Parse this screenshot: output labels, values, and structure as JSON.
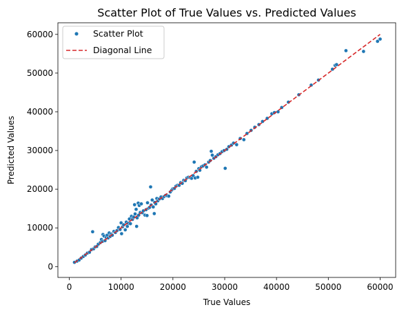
{
  "chart_data": {
    "type": "scatter",
    "title": "Scatter Plot of True Values vs. Predicted Values",
    "xlabel": "True Values",
    "ylabel": "Predicted Values",
    "xlim": [
      -2200,
      63000
    ],
    "ylim": [
      -2800,
      63000
    ],
    "xticks": [
      0,
      10000,
      20000,
      30000,
      40000,
      50000,
      60000
    ],
    "yticks": [
      0,
      10000,
      20000,
      30000,
      40000,
      50000,
      60000
    ],
    "xtick_labels": [
      "0",
      "10000",
      "20000",
      "30000",
      "40000",
      "50000",
      "60000"
    ],
    "ytick_labels": [
      "0",
      "10000",
      "20000",
      "30000",
      "40000",
      "50000",
      "60000"
    ],
    "grid": false,
    "legend_position": "top-left",
    "legend": {
      "scatter_label": "Scatter Plot",
      "line_label": "Diagonal Line"
    },
    "colors": {
      "scatter": "#1f77b4",
      "diagonal": "#d62728"
    },
    "diagonal": [
      [
        1000,
        1000
      ],
      [
        60000,
        60000
      ]
    ],
    "series": [
      {
        "name": "Scatter Plot",
        "points": [
          [
            1000,
            1100
          ],
          [
            1500,
            1400
          ],
          [
            1900,
            1700
          ],
          [
            2300,
            2200
          ],
          [
            2700,
            2600
          ],
          [
            3100,
            3000
          ],
          [
            3500,
            3500
          ],
          [
            3900,
            3700
          ],
          [
            4300,
            4400
          ],
          [
            4500,
            9000
          ],
          [
            4700,
            4600
          ],
          [
            5000,
            5100
          ],
          [
            5300,
            5200
          ],
          [
            5600,
            5800
          ],
          [
            6000,
            6200
          ],
          [
            6200,
            7000
          ],
          [
            6400,
            6500
          ],
          [
            6500,
            8300
          ],
          [
            6700,
            7900
          ],
          [
            6900,
            6700
          ],
          [
            7100,
            7600
          ],
          [
            7300,
            8100
          ],
          [
            7500,
            7400
          ],
          [
            7700,
            8700
          ],
          [
            7900,
            7800
          ],
          [
            8100,
            8400
          ],
          [
            8300,
            8100
          ],
          [
            8600,
            9100
          ],
          [
            8900,
            8800
          ],
          [
            9200,
            9300
          ],
          [
            9500,
            10100
          ],
          [
            9800,
            9600
          ],
          [
            10000,
            11300
          ],
          [
            10100,
            8500
          ],
          [
            10300,
            10300
          ],
          [
            10500,
            10800
          ],
          [
            10800,
            9500
          ],
          [
            11000,
            11500
          ],
          [
            11200,
            10400
          ],
          [
            11400,
            11200
          ],
          [
            11600,
            12300
          ],
          [
            11800,
            11100
          ],
          [
            12000,
            13000
          ],
          [
            12200,
            12200
          ],
          [
            12400,
            12800
          ],
          [
            12600,
            16000
          ],
          [
            12700,
            13600
          ],
          [
            12900,
            14800
          ],
          [
            13000,
            10400
          ],
          [
            13100,
            12600
          ],
          [
            13300,
            16400
          ],
          [
            13400,
            13300
          ],
          [
            13500,
            15800
          ],
          [
            13700,
            14000
          ],
          [
            13900,
            16200
          ],
          [
            14100,
            13900
          ],
          [
            14300,
            14400
          ],
          [
            14600,
            13300
          ],
          [
            14800,
            14700
          ],
          [
            15000,
            13200
          ],
          [
            15100,
            16500
          ],
          [
            15300,
            15100
          ],
          [
            15500,
            15300
          ],
          [
            15700,
            20600
          ],
          [
            15800,
            15900
          ],
          [
            16000,
            17200
          ],
          [
            16200,
            15400
          ],
          [
            16400,
            13700
          ],
          [
            16500,
            16600
          ],
          [
            16700,
            16200
          ],
          [
            16900,
            17600
          ],
          [
            17100,
            17000
          ],
          [
            17400,
            17500
          ],
          [
            17700,
            18000
          ],
          [
            18000,
            17600
          ],
          [
            18300,
            18100
          ],
          [
            18600,
            18400
          ],
          [
            18900,
            18300
          ],
          [
            19200,
            18200
          ],
          [
            19500,
            19300
          ],
          [
            19800,
            19800
          ],
          [
            20000,
            20100
          ],
          [
            20300,
            20200
          ],
          [
            20600,
            20800
          ],
          [
            20900,
            21000
          ],
          [
            21200,
            21000
          ],
          [
            21500,
            21700
          ],
          [
            21800,
            21500
          ],
          [
            22100,
            22300
          ],
          [
            22400,
            22200
          ],
          [
            22700,
            22900
          ],
          [
            23000,
            23100
          ],
          [
            23300,
            23000
          ],
          [
            23600,
            22800
          ],
          [
            23900,
            23500
          ],
          [
            24100,
            27000
          ],
          [
            24300,
            22900
          ],
          [
            24500,
            24600
          ],
          [
            24800,
            23100
          ],
          [
            25000,
            25300
          ],
          [
            25200,
            24900
          ],
          [
            25500,
            25800
          ],
          [
            25800,
            26000
          ],
          [
            26200,
            26300
          ],
          [
            26500,
            25700
          ],
          [
            26900,
            27000
          ],
          [
            27200,
            27400
          ],
          [
            27400,
            29800
          ],
          [
            27600,
            28800
          ],
          [
            27900,
            28000
          ],
          [
            28300,
            28400
          ],
          [
            28700,
            28900
          ],
          [
            29100,
            29200
          ],
          [
            29500,
            29700
          ],
          [
            29900,
            30000
          ],
          [
            30100,
            25400
          ],
          [
            30400,
            30300
          ],
          [
            30800,
            31000
          ],
          [
            31300,
            31400
          ],
          [
            31700,
            31900
          ],
          [
            32300,
            31500
          ],
          [
            33000,
            33100
          ],
          [
            33700,
            32800
          ],
          [
            34300,
            34400
          ],
          [
            35100,
            35200
          ],
          [
            35800,
            36000
          ],
          [
            36600,
            36700
          ],
          [
            37300,
            37500
          ],
          [
            38200,
            38300
          ],
          [
            39100,
            39500
          ],
          [
            39600,
            39800
          ],
          [
            40300,
            40000
          ],
          [
            41000,
            41100
          ],
          [
            42300,
            42500
          ],
          [
            44300,
            44400
          ],
          [
            46700,
            46900
          ],
          [
            48100,
            48200
          ],
          [
            50800,
            51000
          ],
          [
            51300,
            52000
          ],
          [
            51600,
            52200
          ],
          [
            53400,
            55800
          ],
          [
            56800,
            55600
          ],
          [
            59500,
            58200
          ],
          [
            60000,
            58800
          ]
        ]
      }
    ]
  }
}
